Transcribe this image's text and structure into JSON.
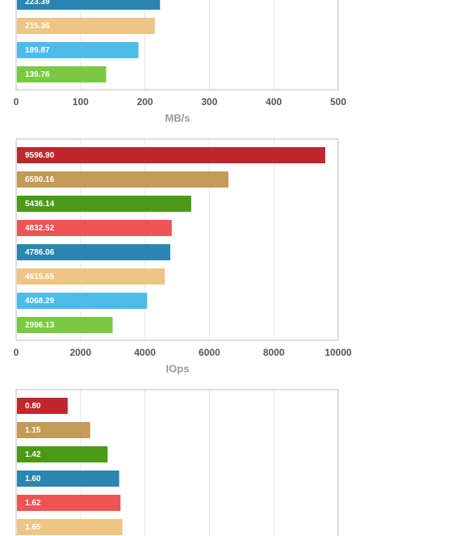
{
  "chart_data": [
    {
      "type": "bar",
      "orientation": "horizontal",
      "xlabel": "MB/s",
      "values": [
        223.39,
        215.36,
        189.87,
        139.76
      ],
      "value_labels": [
        "223.39",
        "215.36",
        "189.87",
        "139.76"
      ],
      "colors": [
        "#2a86b0",
        "#eec584",
        "#4dbbea",
        "#7ac943"
      ],
      "xlim": [
        0,
        500
      ],
      "xticks": [
        0,
        100,
        200,
        300,
        400,
        500
      ],
      "grid": true
    },
    {
      "type": "bar",
      "orientation": "horizontal",
      "xlabel": "IOps",
      "values": [
        9596.9,
        6590.16,
        5436.14,
        4832.52,
        4786.06,
        4615.65,
        4068.29,
        2996.13
      ],
      "value_labels": [
        "9596.90",
        "6590.16",
        "5436.14",
        "4832.52",
        "4786.06",
        "4615.65",
        "4068.29",
        "2996.13"
      ],
      "colors": [
        "#c0272d",
        "#c49a56",
        "#4a9a16",
        "#ef5454",
        "#2a86b0",
        "#eec584",
        "#4dbbea",
        "#7ac943"
      ],
      "xlim": [
        0,
        10000
      ],
      "xticks": [
        0,
        2000,
        4000,
        6000,
        8000,
        10000
      ],
      "grid": true
    },
    {
      "type": "bar",
      "orientation": "horizontal",
      "values": [
        0.8,
        1.15,
        1.42,
        1.6,
        1.62,
        1.65
      ],
      "value_labels": [
        "0.80",
        "1.15",
        "1.42",
        "1.60",
        "1.62",
        "1.65"
      ],
      "colors": [
        "#c0272d",
        "#c49a56",
        "#4a9a16",
        "#2a86b0",
        "#ef5454",
        "#eec584"
      ],
      "xlim": [
        0,
        5
      ],
      "grid": true
    }
  ]
}
